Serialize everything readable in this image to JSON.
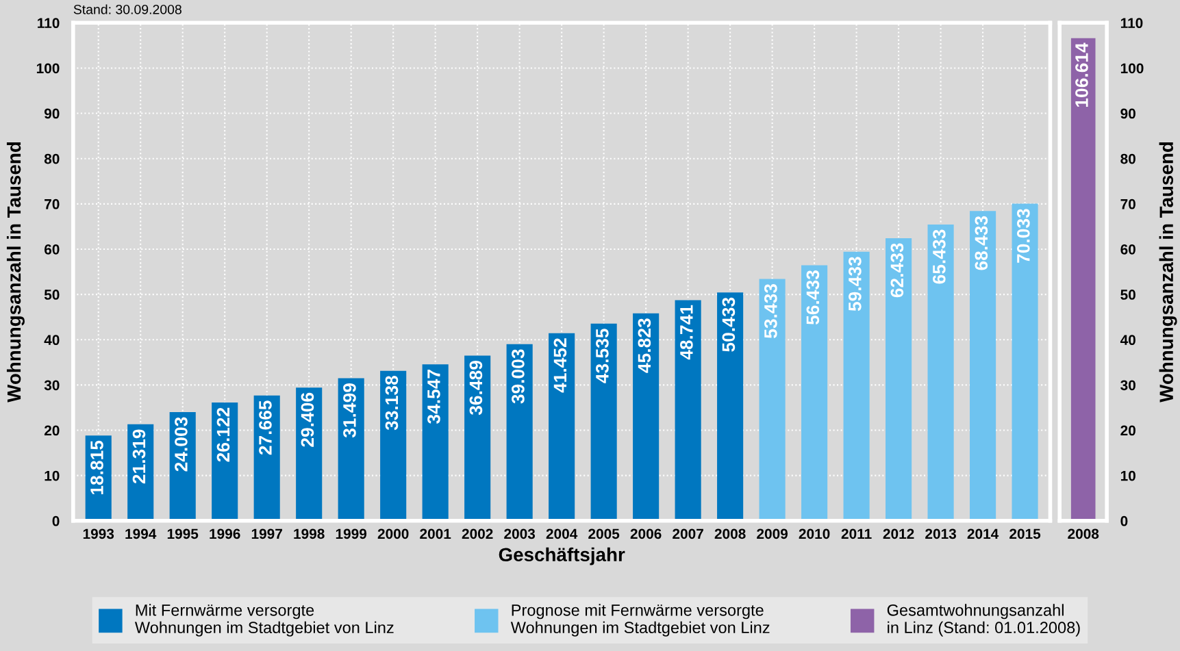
{
  "chart_data": [
    {
      "type": "bar",
      "xlabel": "Geschäftsjahr",
      "ylabel": "Wohnungsanzahl in Tausend",
      "categories": [
        "1993",
        "1994",
        "1995",
        "1996",
        "1997",
        "1998",
        "1999",
        "2000",
        "2001",
        "2002",
        "2003",
        "2004",
        "2005",
        "2006",
        "2007",
        "2008",
        "2009",
        "2010",
        "2011",
        "2012",
        "2013",
        "2014",
        "2015"
      ],
      "series": [
        {
          "name": "Mit Fernwärme versorgte\nWohnungen im Stadtgebiet von Linz",
          "color": "#0077c0",
          "values": [
            18.815,
            21.319,
            24.003,
            26.122,
            27.665,
            29.406,
            31.499,
            33.138,
            34.547,
            36.489,
            39.003,
            41.452,
            43.535,
            45.823,
            48.741,
            50.433,
            null,
            null,
            null,
            null,
            null,
            null,
            null
          ]
        },
        {
          "name": "Prognose mit Fernwärme versorgte\nWohnungen im Stadtgebiet von Linz",
          "color": "#6ec3f0",
          "values": [
            null,
            null,
            null,
            null,
            null,
            null,
            null,
            null,
            null,
            null,
            null,
            null,
            null,
            null,
            null,
            null,
            53.433,
            56.433,
            59.433,
            62.433,
            65.433,
            68.433,
            70.033
          ]
        }
      ],
      "ylim": [
        0,
        110
      ],
      "yticks": [
        0,
        10,
        20,
        30,
        40,
        50,
        60,
        70,
        80,
        90,
        100,
        110
      ],
      "grid": true,
      "data_labels": true,
      "legend": "bottom",
      "annotations": [
        "Stand: 30.09.2008"
      ]
    },
    {
      "type": "bar",
      "y2label": "Wohnungsanzahl in Tausend",
      "categories": [
        "2008"
      ],
      "series": [
        {
          "name": "Gesamtwohnungsanzahl\nin Linz (Stand: 01.01.2008)",
          "color": "#8e63a8",
          "values": [
            106.614
          ],
          "axis": "y2"
        }
      ],
      "y2lim": [
        0,
        110
      ],
      "y2ticks": [
        0,
        10,
        20,
        30,
        40,
        50,
        60,
        70,
        80,
        90,
        100,
        110
      ],
      "data_labels": true,
      "legend": "bottom"
    }
  ]
}
